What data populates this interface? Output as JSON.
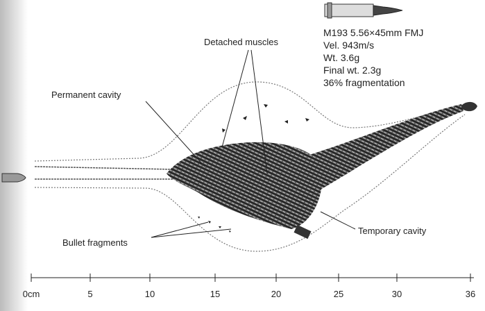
{
  "specs": {
    "cartridge": "M193 5.56×45mm FMJ",
    "velocity": "Vel. 943m/s",
    "weight": "Wt. 3.6g",
    "final_weight": "Final wt. 2.3g",
    "fragmentation": "36% fragmentation"
  },
  "labels": {
    "detached_muscles": "Detached muscles",
    "permanent_cavity": "Permanent cavity",
    "bullet_fragments": "Bullet fragments",
    "temporary_cavity": "Temporary cavity"
  },
  "axis": {
    "ticks": [
      "0cm",
      "5",
      "10",
      "15",
      "20",
      "25",
      "30",
      "36"
    ]
  }
}
